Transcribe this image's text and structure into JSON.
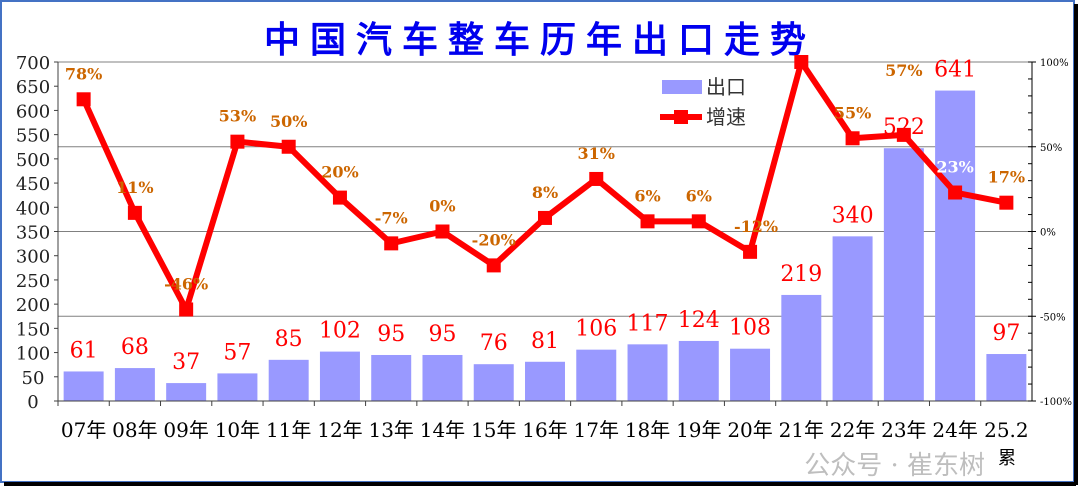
{
  "chart_data": {
    "type": "bar+line",
    "title": "中国汽车整车历年出口走势",
    "categories": [
      "07年",
      "08年",
      "09年",
      "10年",
      "11年",
      "12年",
      "13年",
      "14年",
      "15年",
      "16年",
      "17年",
      "18年",
      "19年",
      "20年",
      "21年",
      "22年",
      "23年",
      "24年",
      "25.2"
    ],
    "category_note": "累",
    "series": [
      {
        "name": "出口",
        "type": "bar",
        "axis": "left",
        "color": "#9999ff",
        "values": [
          61,
          68,
          37,
          57,
          85,
          102,
          95,
          95,
          76,
          81,
          106,
          117,
          124,
          108,
          219,
          340,
          522,
          641,
          97
        ],
        "labels": [
          "61",
          "68",
          "37",
          "57",
          "85",
          "102",
          "95",
          "95",
          "76",
          "81",
          "106",
          "117",
          "124",
          "108",
          "219",
          "340",
          "522",
          "641",
          "97"
        ]
      },
      {
        "name": "增速",
        "type": "line",
        "axis": "right",
        "color": "#ff0000",
        "values": [
          78,
          11,
          -46,
          53,
          50,
          20,
          -7,
          0,
          -20,
          8,
          31,
          6,
          6,
          -12,
          100,
          55,
          57,
          23,
          17
        ],
        "labels": [
          "78%",
          "11%",
          "-46%",
          "53%",
          "50%",
          "20%",
          "-7%",
          "0%",
          "-20%",
          "8%",
          "31%",
          "6%",
          "6%",
          "-12%",
          "",
          "55%",
          "57%",
          "23%",
          "17%"
        ]
      }
    ],
    "left_axis": {
      "ylim": [
        0,
        700
      ],
      "ticks": [
        "0",
        "50",
        "100",
        "150",
        "200",
        "250",
        "300",
        "350",
        "400",
        "450",
        "500",
        "550",
        "600",
        "650",
        "700"
      ]
    },
    "right_axis": {
      "ylim": [
        -100,
        100
      ],
      "ticks": [
        "-100%",
        "-50%",
        "0%",
        "50%",
        "100%"
      ]
    },
    "grid": "horizontal at 50% steps of right axis",
    "legend_placement": "top-center-right",
    "label_colors": {
      "bar_value": "#ff0000",
      "growth": "#cc6600"
    }
  },
  "watermark": "公众号 · 崔东树"
}
